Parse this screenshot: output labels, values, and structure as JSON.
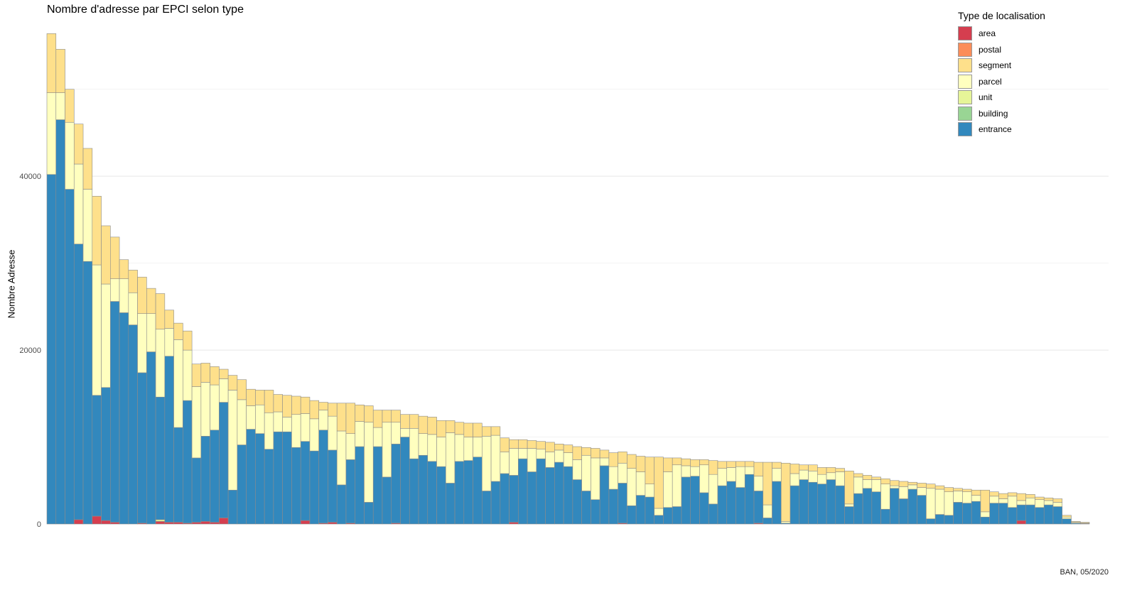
{
  "chart_data": {
    "type": "bar",
    "stacked": true,
    "title": "Nombre d'adresse par EPCI selon type",
    "xlabel": "",
    "ylabel": "Nombre Adresse",
    "ylim": [
      0,
      57000
    ],
    "yticks": [
      0,
      20000,
      40000
    ],
    "grid": true,
    "legend_placement": "top-right",
    "caption": "BAN, 05/2020",
    "legend": {
      "title": "Type de localisation",
      "items": [
        {
          "key": "area",
          "label": "area",
          "color": "#d53e4f"
        },
        {
          "key": "postal",
          "label": "postal",
          "color": "#fc8d59"
        },
        {
          "key": "segment",
          "label": "segment",
          "color": "#fee08b"
        },
        {
          "key": "parcel",
          "label": "parcel",
          "color": "#ffffbf"
        },
        {
          "key": "unit",
          "label": "unit",
          "color": "#e6f598"
        },
        {
          "key": "building",
          "label": "building",
          "color": "#99d594"
        },
        {
          "key": "entrance",
          "label": "entrance",
          "color": "#3288bd"
        }
      ]
    },
    "bars": [
      {
        "entrance": 40200,
        "parcel": 9400,
        "segment": 6800
      },
      {
        "entrance": 46500,
        "parcel": 3100,
        "segment": 5000
      },
      {
        "entrance": 38500,
        "parcel": 7700,
        "segment": 3800
      },
      {
        "area": 500,
        "entrance": 31700,
        "parcel": 9200,
        "segment": 4600
      },
      {
        "entrance": 30200,
        "parcel": 8300,
        "segment": 4700
      },
      {
        "area": 900,
        "entrance": 13900,
        "parcel": 15000,
        "segment": 7900
      },
      {
        "area": 400,
        "entrance": 15300,
        "parcel": 11900,
        "segment": 6700
      },
      {
        "area": 200,
        "entrance": 25400,
        "parcel": 2600,
        "segment": 4800
      },
      {
        "entrance": 24300,
        "parcel": 3900,
        "segment": 2200
      },
      {
        "entrance": 22900,
        "parcel": 3700,
        "segment": 2600
      },
      {
        "area": 100,
        "entrance": 17300,
        "parcel": 6800,
        "segment": 4200
      },
      {
        "entrance": 19800,
        "parcel": 4400,
        "segment": 2900
      },
      {
        "area": 300,
        "unit": 200,
        "entrance": 14100,
        "parcel": 7800,
        "segment": 4100
      },
      {
        "area": 200,
        "entrance": 19100,
        "parcel": 3200,
        "segment": 2100
      },
      {
        "area": 200,
        "entrance": 10900,
        "parcel": 10100,
        "segment": 1900
      },
      {
        "area": 100,
        "entrance": 14100,
        "parcel": 5800,
        "segment": 2200
      },
      {
        "area": 200,
        "entrance": 7400,
        "parcel": 8200,
        "segment": 2600
      },
      {
        "area": 300,
        "entrance": 9800,
        "parcel": 6200,
        "segment": 2200
      },
      {
        "area": 200,
        "entrance": 10600,
        "parcel": 5200,
        "segment": 2100
      },
      {
        "area": 700,
        "entrance": 13300,
        "parcel": 2700,
        "segment": 1100
      },
      {
        "entrance": 3900,
        "parcel": 11500,
        "segment": 1700
      },
      {
        "entrance": 9100,
        "parcel": 5200,
        "segment": 2300
      },
      {
        "entrance": 10900,
        "parcel": 2700,
        "segment": 1900
      },
      {
        "entrance": 10400,
        "parcel": 3300,
        "segment": 1700
      },
      {
        "entrance": 8600,
        "parcel": 4200,
        "segment": 2600
      },
      {
        "entrance": 10600,
        "parcel": 2300,
        "segment": 2000
      },
      {
        "entrance": 10600,
        "parcel": 1700,
        "segment": 2500
      },
      {
        "entrance": 8800,
        "parcel": 3800,
        "segment": 2100
      },
      {
        "area": 400,
        "entrance": 9100,
        "parcel": 3200,
        "segment": 1900
      },
      {
        "entrance": 8400,
        "parcel": 3700,
        "segment": 2100
      },
      {
        "area": 100,
        "entrance": 10700,
        "parcel": 2300,
        "segment": 900
      },
      {
        "area": 200,
        "entrance": 8300,
        "parcel": 3900,
        "segment": 1500
      },
      {
        "entrance": 4500,
        "parcel": 6200,
        "segment": 3200
      },
      {
        "area": 100,
        "entrance": 7300,
        "parcel": 3000,
        "segment": 3500
      },
      {
        "entrance": 8900,
        "parcel": 2900,
        "segment": 1900
      },
      {
        "entrance": 2500,
        "parcel": 9200,
        "segment": 1900
      },
      {
        "entrance": 8900,
        "parcel": 2200,
        "segment": 2000
      },
      {
        "entrance": 5400,
        "parcel": 6300,
        "segment": 1400
      },
      {
        "area": 100,
        "entrance": 9100,
        "parcel": 2500,
        "segment": 1400
      },
      {
        "entrance": 10000,
        "parcel": 1000,
        "segment": 1600
      },
      {
        "entrance": 7500,
        "parcel": 3500,
        "segment": 1600
      },
      {
        "entrance": 7900,
        "parcel": 2500,
        "segment": 2000
      },
      {
        "entrance": 7200,
        "parcel": 3100,
        "segment": 2000
      },
      {
        "entrance": 6600,
        "parcel": 3400,
        "segment": 1900
      },
      {
        "entrance": 4700,
        "parcel": 5800,
        "segment": 1400
      },
      {
        "entrance": 7200,
        "parcel": 3100,
        "segment": 1400
      },
      {
        "entrance": 7300,
        "parcel": 2700,
        "segment": 1600
      },
      {
        "entrance": 7700,
        "parcel": 2300,
        "segment": 1600
      },
      {
        "entrance": 3800,
        "parcel": 6300,
        "segment": 1100
      },
      {
        "entrance": 4900,
        "parcel": 5300,
        "segment": 1000
      },
      {
        "entrance": 5800,
        "parcel": 2500,
        "segment": 1600
      },
      {
        "area": 200,
        "entrance": 5400,
        "parcel": 3100,
        "segment": 1000
      },
      {
        "entrance": 7500,
        "parcel": 1200,
        "segment": 1000
      },
      {
        "entrance": 6000,
        "parcel": 2700,
        "segment": 900
      },
      {
        "entrance": 7500,
        "parcel": 1100,
        "segment": 900
      },
      {
        "entrance": 6500,
        "parcel": 1800,
        "segment": 1100
      },
      {
        "entrance": 7100,
        "parcel": 1400,
        "segment": 700
      },
      {
        "entrance": 6600,
        "parcel": 1600,
        "segment": 900
      },
      {
        "entrance": 5100,
        "parcel": 2300,
        "segment": 1500
      },
      {
        "entrance": 3800,
        "parcel": 4100,
        "segment": 900
      },
      {
        "entrance": 2800,
        "parcel": 4800,
        "segment": 1100
      },
      {
        "entrance": 6700,
        "parcel": 900,
        "segment": 900
      },
      {
        "entrance": 4000,
        "parcel": 2600,
        "segment": 1600
      },
      {
        "area": 100,
        "entrance": 4600,
        "parcel": 2300,
        "segment": 1300
      },
      {
        "entrance": 2100,
        "parcel": 4300,
        "segment": 1600
      },
      {
        "entrance": 3300,
        "parcel": 2700,
        "segment": 1800
      },
      {
        "entrance": 3100,
        "parcel": 1500,
        "segment": 3100
      },
      {
        "entrance": 1000,
        "parcel": 800,
        "segment": 5900
      },
      {
        "entrance": 1900,
        "parcel": 4100,
        "segment": 1600
      },
      {
        "entrance": 2000,
        "parcel": 4800,
        "segment": 800
      },
      {
        "entrance": 5400,
        "parcel": 1300,
        "segment": 800
      },
      {
        "entrance": 5500,
        "parcel": 1100,
        "segment": 800
      },
      {
        "entrance": 3600,
        "parcel": 3200,
        "segment": 600
      },
      {
        "entrance": 2300,
        "parcel": 3400,
        "segment": 1600
      },
      {
        "entrance": 4400,
        "parcel": 2000,
        "segment": 800
      },
      {
        "entrance": 4900,
        "parcel": 1600,
        "segment": 700
      },
      {
        "entrance": 4200,
        "parcel": 2400,
        "segment": 600
      },
      {
        "entrance": 5700,
        "parcel": 900,
        "segment": 600
      },
      {
        "area": 100,
        "entrance": 3700,
        "parcel": 1700,
        "segment": 1600
      },
      {
        "entrance": 700,
        "parcel": 1500,
        "segment": 4900
      },
      {
        "entrance": 4900,
        "parcel": 1500,
        "segment": 700
      },
      {
        "entrance": 100,
        "parcel": 200,
        "segment": 6700
      },
      {
        "entrance": 4400,
        "parcel": 1400,
        "segment": 1100
      },
      {
        "entrance": 5100,
        "parcel": 1100,
        "segment": 600
      },
      {
        "entrance": 4800,
        "parcel": 1300,
        "segment": 700
      },
      {
        "entrance": 4600,
        "parcel": 1100,
        "segment": 800
      },
      {
        "entrance": 5100,
        "parcel": 800,
        "segment": 600
      },
      {
        "entrance": 4400,
        "parcel": 1600,
        "segment": 400
      },
      {
        "entrance": 2000,
        "parcel": 300,
        "segment": 3800
      },
      {
        "entrance": 3500,
        "parcel": 1900,
        "segment": 400
      },
      {
        "entrance": 4100,
        "parcel": 1000,
        "segment": 500
      },
      {
        "entrance": 3700,
        "parcel": 1400,
        "segment": 300
      },
      {
        "entrance": 1700,
        "parcel": 2900,
        "segment": 600
      },
      {
        "entrance": 4100,
        "parcel": 300,
        "segment": 600
      },
      {
        "entrance": 2900,
        "parcel": 1400,
        "segment": 600
      },
      {
        "entrance": 4000,
        "parcel": 500,
        "segment": 300
      },
      {
        "entrance": 3300,
        "parcel": 900,
        "segment": 500
      },
      {
        "entrance": 600,
        "parcel": 3500,
        "segment": 500
      },
      {
        "entrance": 1100,
        "parcel": 2900,
        "segment": 400
      },
      {
        "entrance": 1000,
        "parcel": 2700,
        "segment": 500
      },
      {
        "entrance": 2500,
        "parcel": 1300,
        "segment": 300
      },
      {
        "entrance": 2400,
        "parcel": 1300,
        "segment": 300
      },
      {
        "entrance": 2600,
        "parcel": 700,
        "segment": 600
      },
      {
        "entrance": 800,
        "parcel": 600,
        "segment": 2500
      },
      {
        "entrance": 2400,
        "parcel": 800,
        "segment": 500
      },
      {
        "entrance": 2400,
        "parcel": 500,
        "segment": 600
      },
      {
        "entrance": 1900,
        "parcel": 1300,
        "segment": 400
      },
      {
        "area": 400,
        "entrance": 1800,
        "parcel": 500,
        "segment": 800
      },
      {
        "entrance": 2200,
        "parcel": 800,
        "segment": 400
      },
      {
        "entrance": 1900,
        "parcel": 900,
        "segment": 300
      },
      {
        "entrance": 2200,
        "parcel": 500,
        "segment": 300
      },
      {
        "entrance": 2000,
        "parcel": 500,
        "segment": 400
      },
      {
        "entrance": 600,
        "parcel": 200,
        "segment": 200
      },
      {
        "entrance": 100,
        "parcel": 100,
        "segment": 100
      },
      {
        "entrance": 50,
        "parcel": 50,
        "segment": 100
      }
    ]
  }
}
